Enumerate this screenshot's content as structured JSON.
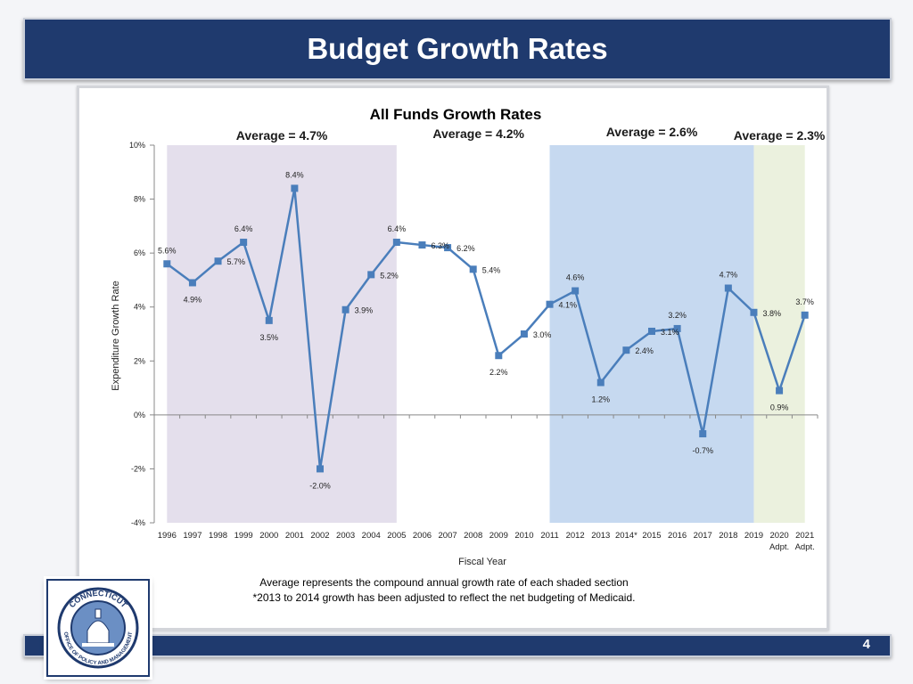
{
  "slide": {
    "title": "Budget Growth Rates",
    "page_number": "4",
    "footnote_1": "Average represents the compound annual growth rate of each shaded section",
    "footnote_2": "*2013 to 2014 growth has been adjusted to reflect the net budgeting of Medicaid.",
    "logo": {
      "text_top": "CONNECTICUT",
      "text_bottom": "OFFICE OF POLICY AND MANAGEMENT"
    }
  },
  "colors": {
    "header": "#1f3a6e",
    "line": "#4a7ebb",
    "shade_1": "#e4dfec",
    "shade_2": "#c6d9f0",
    "shade_3": "#ebf1de"
  },
  "chart_data": {
    "type": "line",
    "title": "All Funds Growth Rates",
    "xlabel": "Fiscal Year",
    "ylabel": "Expenditure Growth Rate",
    "ylim": [
      -4,
      10
    ],
    "yticks": [
      "-4%",
      "-2%",
      "0%",
      "2%",
      "4%",
      "6%",
      "8%",
      "10%"
    ],
    "ytick_values": [
      -4,
      -2,
      0,
      2,
      4,
      6,
      8,
      10
    ],
    "categories": [
      "1996",
      "1997",
      "1998",
      "1999",
      "2000",
      "2001",
      "2002",
      "2003",
      "2004",
      "2005",
      "2006",
      "2007",
      "2008",
      "2009",
      "2010",
      "2011",
      "2012",
      "2013",
      "2014*",
      "2015",
      "2016",
      "2017",
      "2018",
      "2019",
      "2020",
      "2021"
    ],
    "category_sublabels": {
      "2020": "Adpt.",
      "2021": "Adpt."
    },
    "series": [
      {
        "name": "All Funds Growth Rate",
        "values": [
          5.6,
          4.9,
          5.7,
          6.4,
          3.5,
          8.4,
          -2.0,
          3.9,
          5.2,
          6.4,
          6.3,
          6.2,
          5.4,
          2.2,
          3.0,
          4.1,
          4.6,
          1.2,
          2.4,
          3.1,
          3.2,
          -0.7,
          4.7,
          3.8,
          0.9,
          3.7
        ],
        "labels": [
          "5.6%",
          "4.9%",
          "5.7%",
          "6.4%",
          "3.5%",
          "8.4%",
          "-2.0%",
          "3.9%",
          "5.2%",
          "6.4%",
          "6.3%",
          "6.2%",
          "5.4%",
          "2.2%",
          "3.0%",
          "4.1%",
          "4.6%",
          "1.2%",
          "2.4%",
          "3.1%",
          "3.2%",
          "-0.7%",
          "4.7%",
          "3.8%",
          "0.9%",
          "3.7%"
        ]
      }
    ],
    "shaded_regions": [
      {
        "from": "1996",
        "to": "2005",
        "label": "Average = 4.7%",
        "color": "#e4dfec"
      },
      {
        "from": "2011",
        "to": "2019",
        "label": "Average = 2.6%",
        "color": "#c6d9f0"
      },
      {
        "from": "2019",
        "to": "2021",
        "label": "Average = 2.3%",
        "color": "#ebf1de"
      }
    ],
    "annotations": [
      {
        "text": "Average = 4.2%",
        "between": [
          "2005",
          "2011"
        ]
      }
    ]
  }
}
